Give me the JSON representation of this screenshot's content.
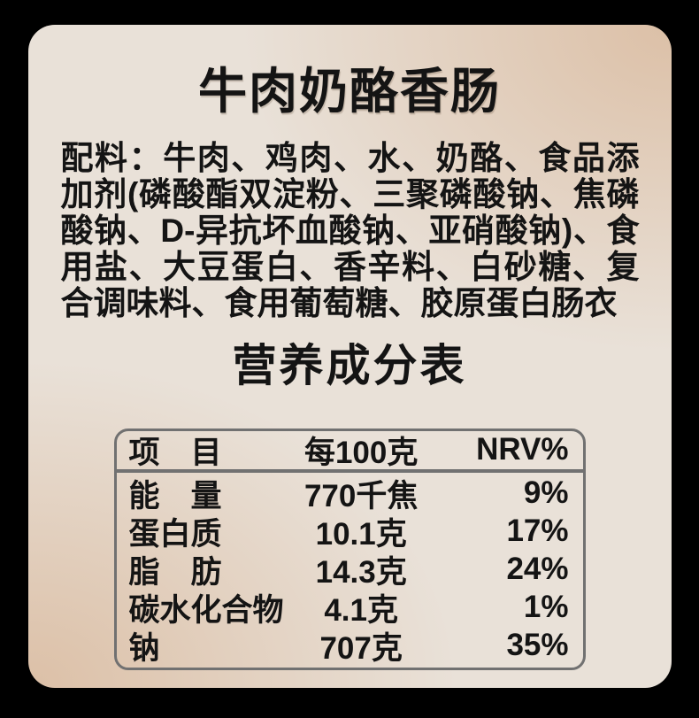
{
  "product": {
    "title": "牛肉奶酪香肠"
  },
  "ingredients": {
    "label": "配料：",
    "text": "牛肉、鸡肉、水、奶酪、食品添加剂(磷酸酯双淀粉、三聚磷酸钠、焦磷酸钠、D-异抗坏血酸钠、亚硝酸钠)、食用盐、大豆蛋白、香辛料、白砂糖、复合调味料、食用葡萄糖、胶原蛋白肠衣"
  },
  "nutrition": {
    "title": "营养成分表",
    "table": {
      "headers": [
        "项　目",
        "每100克",
        "NRV%"
      ],
      "rows": [
        {
          "item": "能　量",
          "per100g": "770千焦",
          "nrv": "9%"
        },
        {
          "item": "蛋白质",
          "per100g": "10.1克",
          "nrv": "17%"
        },
        {
          "item": "脂　肪",
          "per100g": "14.3克",
          "nrv": "24%"
        },
        {
          "item": "碳水化合物",
          "per100g": "4.1克",
          "nrv": "1%"
        },
        {
          "item": "钠",
          "per100g": "707克",
          "nrv": "35%"
        }
      ]
    }
  },
  "colors": {
    "page_background": "#000000",
    "card_base": "#e9e1d8",
    "card_accent": "#dcc0a7",
    "table_border": "#717171",
    "text": "#141414"
  }
}
